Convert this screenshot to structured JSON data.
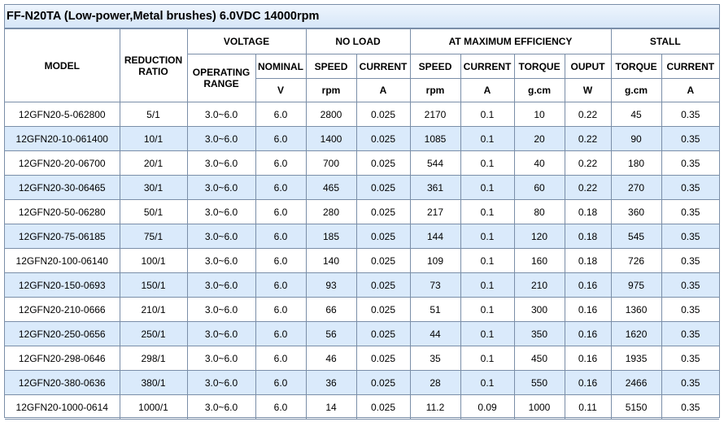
{
  "title": "FF-N20TA (Low-power,Metal brushes)  6.0VDC 14000rpm",
  "headers": {
    "model": "MODEL",
    "reduction_ratio": "REDUCTION RATIO",
    "voltage": "VOLTAGE",
    "no_load": "NO LOAD",
    "max_eff": "AT MAXIMUM EFFICIENCY",
    "stall": "STALL",
    "operating_range": "OPERATING RANGE",
    "nominal": "NOMINAL",
    "speed": "SPEED",
    "current": "CURRENT",
    "torque": "TORQUE",
    "output": "OUPUT",
    "unit_v": "V",
    "unit_rpm": "rpm",
    "unit_a": "A",
    "unit_gcm": "g.cm",
    "unit_w": "W"
  },
  "rows": [
    [
      "12GFN20-5-062800",
      "5/1",
      "3.0~6.0",
      "6.0",
      "2800",
      "0.025",
      "2170",
      "0.1",
      "10",
      "0.22",
      "45",
      "0.35"
    ],
    [
      "12GFN20-10-061400",
      "10/1",
      "3.0~6.0",
      "6.0",
      "1400",
      "0.025",
      "1085",
      "0.1",
      "20",
      "0.22",
      "90",
      "0.35"
    ],
    [
      "12GFN20-20-06700",
      "20/1",
      "3.0~6.0",
      "6.0",
      "700",
      "0.025",
      "544",
      "0.1",
      "40",
      "0.22",
      "180",
      "0.35"
    ],
    [
      "12GFN20-30-06465",
      "30/1",
      "3.0~6.0",
      "6.0",
      "465",
      "0.025",
      "361",
      "0.1",
      "60",
      "0.22",
      "270",
      "0.35"
    ],
    [
      "12GFN20-50-06280",
      "50/1",
      "3.0~6.0",
      "6.0",
      "280",
      "0.025",
      "217",
      "0.1",
      "80",
      "0.18",
      "360",
      "0.35"
    ],
    [
      "12GFN20-75-06185",
      "75/1",
      "3.0~6.0",
      "6.0",
      "185",
      "0.025",
      "144",
      "0.1",
      "120",
      "0.18",
      "545",
      "0.35"
    ],
    [
      "12GFN20-100-06140",
      "100/1",
      "3.0~6.0",
      "6.0",
      "140",
      "0.025",
      "109",
      "0.1",
      "160",
      "0.18",
      "726",
      "0.35"
    ],
    [
      "12GFN20-150-0693",
      "150/1",
      "3.0~6.0",
      "6.0",
      "93",
      "0.025",
      "73",
      "0.1",
      "210",
      "0.16",
      "975",
      "0.35"
    ],
    [
      "12GFN20-210-0666",
      "210/1",
      "3.0~6.0",
      "6.0",
      "66",
      "0.025",
      "51",
      "0.1",
      "300",
      "0.16",
      "1360",
      "0.35"
    ],
    [
      "12GFN20-250-0656",
      "250/1",
      "3.0~6.0",
      "6.0",
      "56",
      "0.025",
      "44",
      "0.1",
      "350",
      "0.16",
      "1620",
      "0.35"
    ],
    [
      "12GFN20-298-0646",
      "298/1",
      "3.0~6.0",
      "6.0",
      "46",
      "0.025",
      "35",
      "0.1",
      "450",
      "0.16",
      "1935",
      "0.35"
    ],
    [
      "12GFN20-380-0636",
      "380/1",
      "3.0~6.0",
      "6.0",
      "36",
      "0.025",
      "28",
      "0.1",
      "550",
      "0.16",
      "2466",
      "0.35"
    ],
    [
      "12GFN20-1000-0614",
      "1000/1",
      "3.0~6.0",
      "6.0",
      "14",
      "0.025",
      "11.2",
      "0.09",
      "1000",
      "0.11",
      "5150",
      "0.35"
    ]
  ],
  "colors": {
    "border": "#7a8ea8",
    "alt_row": "#daeafb",
    "title_bg": "#d6e6f8"
  }
}
